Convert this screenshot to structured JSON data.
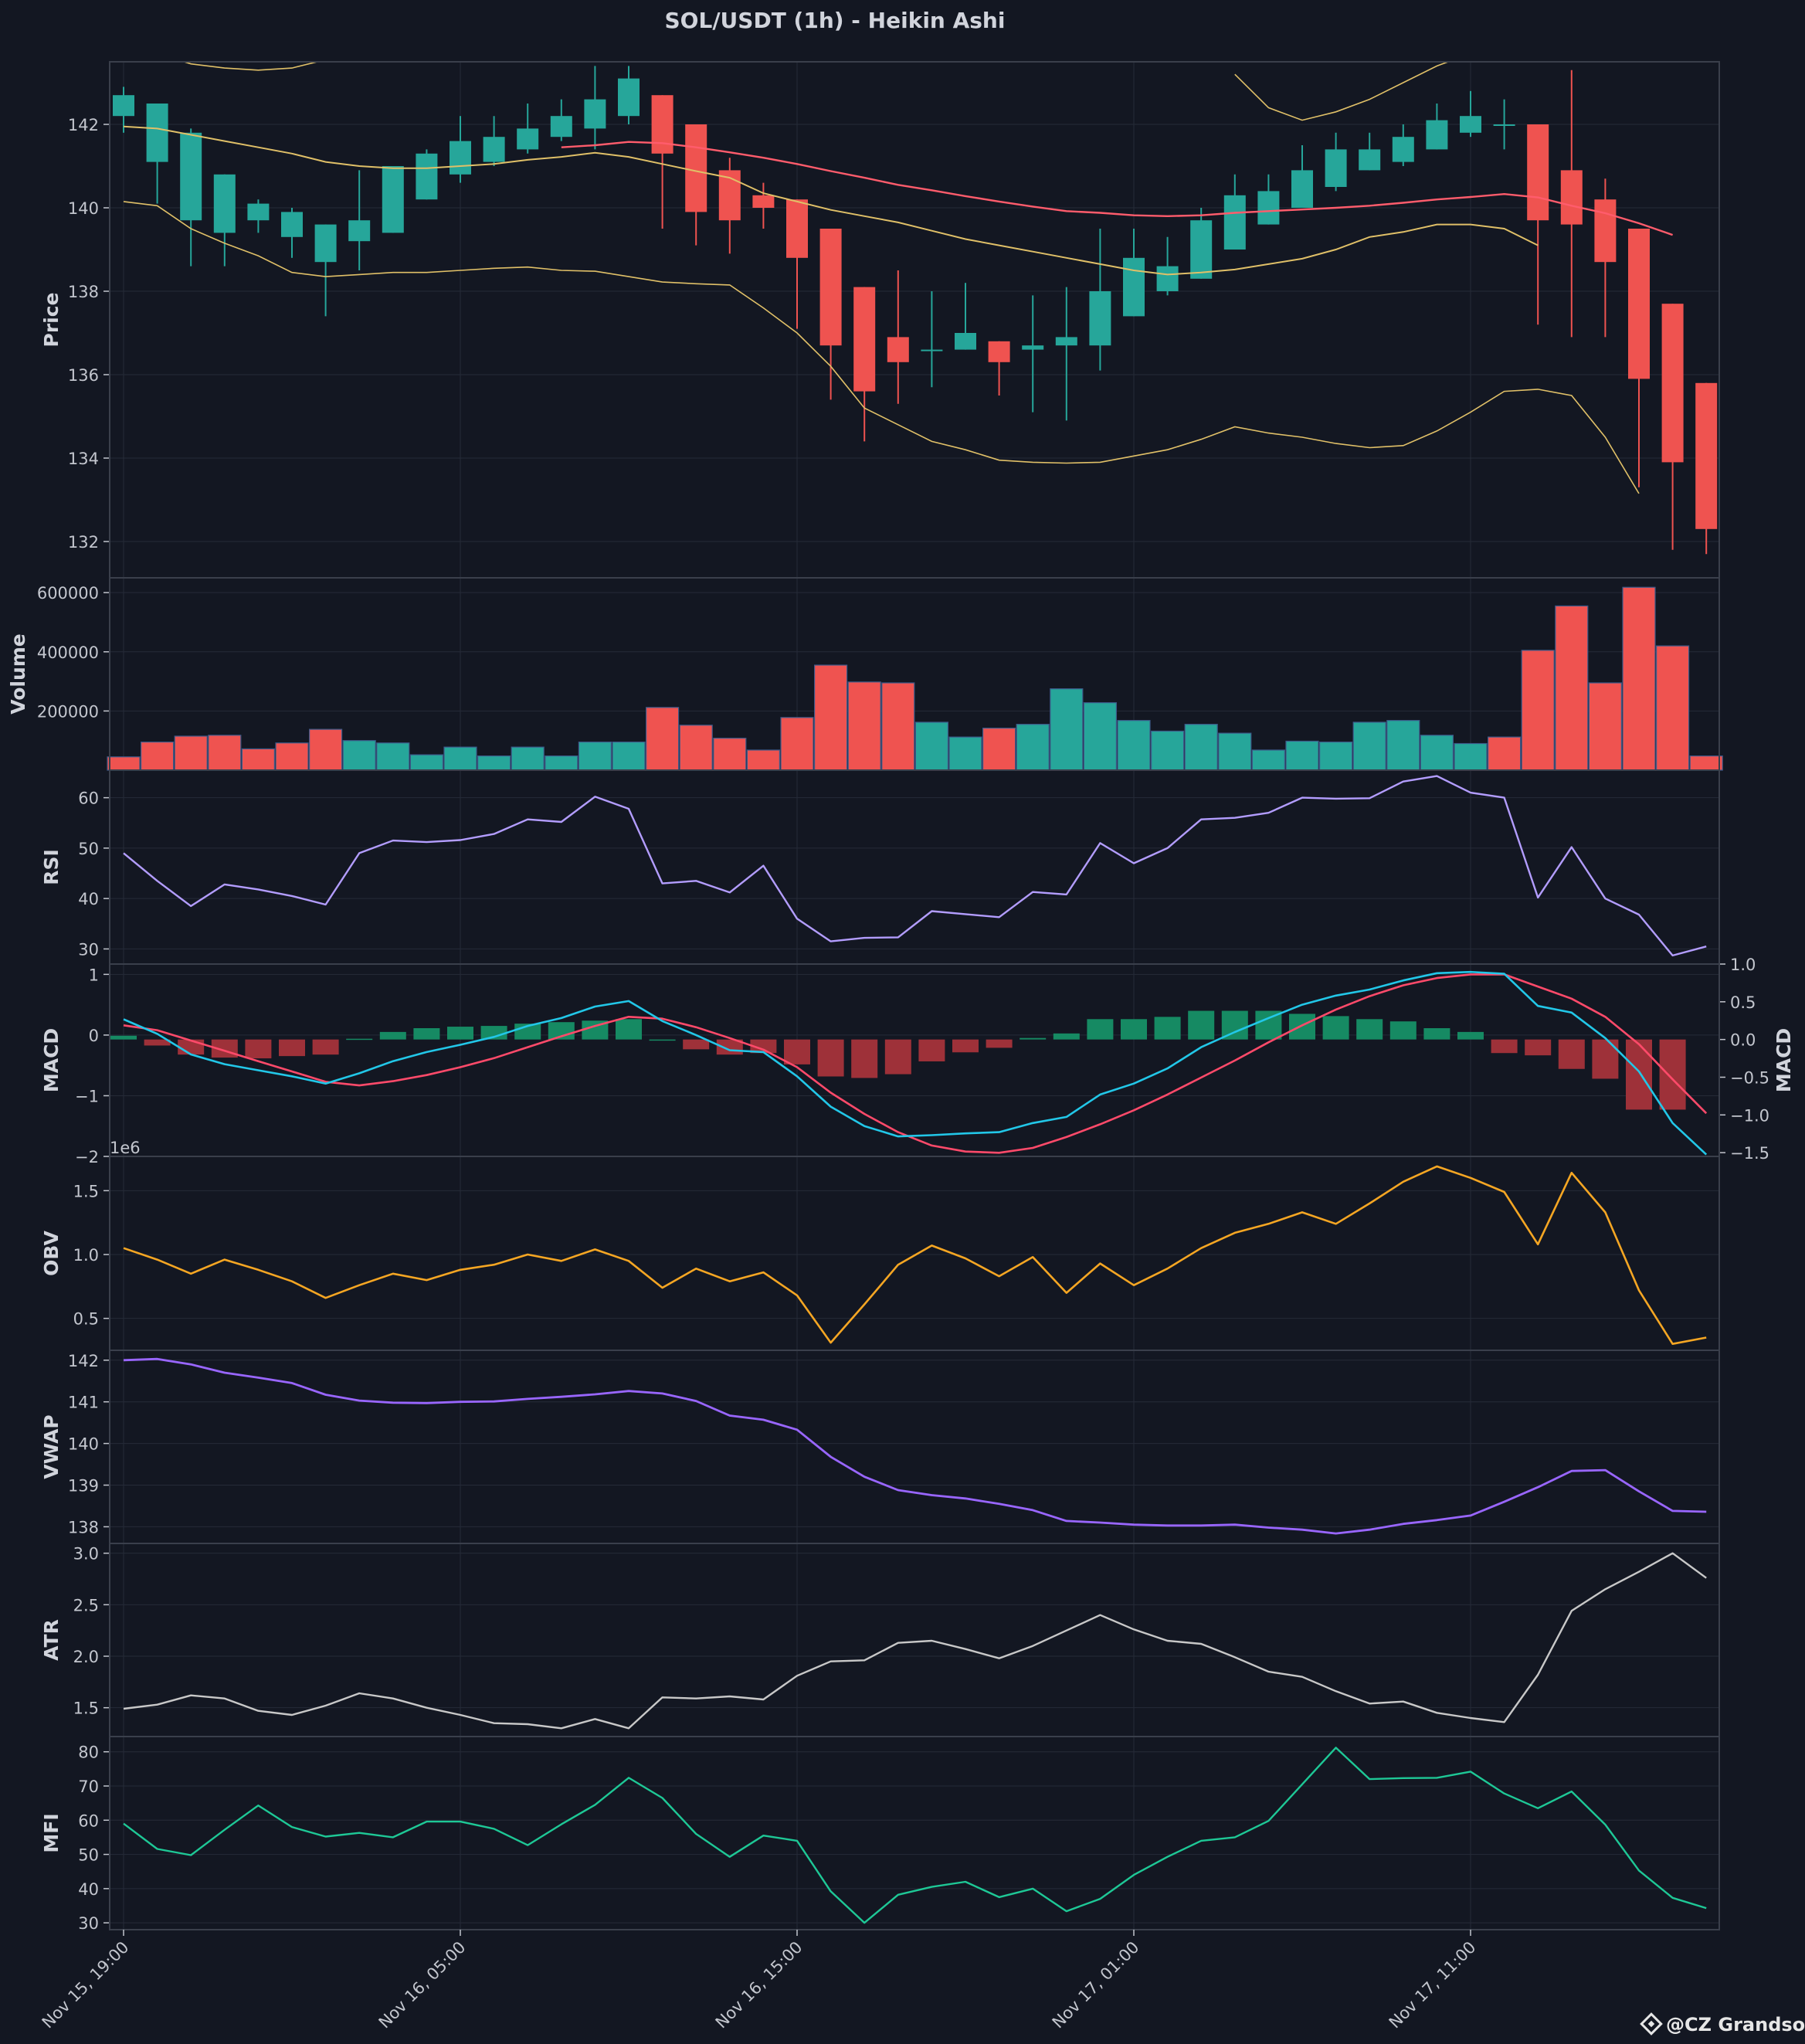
{
  "title": "SOL/USDT (1h) - Heikin Ashi",
  "watermark": "@CZ Grandson",
  "colors": {
    "background": "#131722",
    "up": "#26a69a",
    "down": "#ef5350",
    "ma": "#ff5c6c",
    "bb": "#e0c068",
    "rsi": "#b39dff",
    "macd": "#22c7e8",
    "signal": "#ff4a6a",
    "hist_up": "#168a63",
    "hist_down": "#9e3139",
    "obv": "#f5a623",
    "vwap": "#9966ff",
    "atr": "#c8c8c8",
    "mfi": "#1ec896",
    "grid": "#262b38",
    "text": "#c3c6ce"
  },
  "chart_data": {
    "type": "candlestick-multi-panel",
    "x_ticks": [
      {
        "index": 0,
        "label": "Nov 15, 19:00"
      },
      {
        "index": 10,
        "label": "Nov 16, 05:00"
      },
      {
        "index": 20,
        "label": "Nov 16, 15:00"
      },
      {
        "index": 30,
        "label": "Nov 17, 01:00"
      },
      {
        "index": 40,
        "label": "Nov 17, 11:00"
      }
    ],
    "candles": [
      {
        "o": 142.2,
        "h": 142.9,
        "l": 141.8,
        "c": 142.7
      },
      {
        "o": 141.1,
        "h": 142.4,
        "l": 140.1,
        "c": 142.5
      },
      {
        "o": 139.7,
        "h": 141.9,
        "l": 138.6,
        "c": 141.8
      },
      {
        "o": 139.4,
        "h": 140.8,
        "l": 138.6,
        "c": 140.8
      },
      {
        "o": 139.7,
        "h": 140.2,
        "l": 139.4,
        "c": 140.1
      },
      {
        "o": 139.3,
        "h": 140.0,
        "l": 138.8,
        "c": 139.9
      },
      {
        "o": 138.7,
        "h": 139.6,
        "l": 137.4,
        "c": 139.6
      },
      {
        "o": 139.2,
        "h": 140.9,
        "l": 138.5,
        "c": 139.7
      },
      {
        "o": 139.4,
        "h": 141.0,
        "l": 139.4,
        "c": 141.0
      },
      {
        "o": 140.2,
        "h": 141.4,
        "l": 140.2,
        "c": 141.3
      },
      {
        "o": 140.8,
        "h": 142.2,
        "l": 140.6,
        "c": 141.6
      },
      {
        "o": 141.1,
        "h": 142.2,
        "l": 141.0,
        "c": 141.7
      },
      {
        "o": 141.4,
        "h": 142.5,
        "l": 141.3,
        "c": 141.9
      },
      {
        "o": 141.7,
        "h": 142.6,
        "l": 141.6,
        "c": 142.2
      },
      {
        "o": 141.9,
        "h": 143.4,
        "l": 141.4,
        "c": 142.6
      },
      {
        "o": 142.2,
        "h": 143.4,
        "l": 142.0,
        "c": 143.1
      },
      {
        "o": 142.7,
        "h": 142.7,
        "l": 139.5,
        "c": 141.3
      },
      {
        "o": 142.0,
        "h": 142.0,
        "l": 139.1,
        "c": 139.9
      },
      {
        "o": 140.9,
        "h": 141.2,
        "l": 138.9,
        "c": 139.7
      },
      {
        "o": 140.3,
        "h": 140.6,
        "l": 139.5,
        "c": 140.0
      },
      {
        "o": 140.2,
        "h": 140.2,
        "l": 137.1,
        "c": 138.8
      },
      {
        "o": 139.5,
        "h": 139.5,
        "l": 135.4,
        "c": 136.7
      },
      {
        "o": 138.1,
        "h": 138.1,
        "l": 134.4,
        "c": 135.6
      },
      {
        "o": 136.9,
        "h": 138.5,
        "l": 135.3,
        "c": 136.3
      },
      {
        "o": 136.6,
        "h": 138.0,
        "l": 135.7,
        "c": 136.6
      },
      {
        "o": 136.6,
        "h": 138.2,
        "l": 136.6,
        "c": 137.0
      },
      {
        "o": 136.8,
        "h": 136.8,
        "l": 135.5,
        "c": 136.3
      },
      {
        "o": 136.6,
        "h": 137.9,
        "l": 135.1,
        "c": 136.7
      },
      {
        "o": 136.7,
        "h": 138.1,
        "l": 134.9,
        "c": 136.9
      },
      {
        "o": 136.7,
        "h": 139.5,
        "l": 136.1,
        "c": 138.0
      },
      {
        "o": 137.4,
        "h": 139.5,
        "l": 137.4,
        "c": 138.8
      },
      {
        "o": 138.0,
        "h": 139.3,
        "l": 137.9,
        "c": 138.6
      },
      {
        "o": 138.3,
        "h": 140.0,
        "l": 138.3,
        "c": 139.7
      },
      {
        "o": 139.0,
        "h": 140.8,
        "l": 139.0,
        "c": 140.3
      },
      {
        "o": 139.6,
        "h": 140.8,
        "l": 139.6,
        "c": 140.4
      },
      {
        "o": 140.0,
        "h": 141.5,
        "l": 140.0,
        "c": 140.9
      },
      {
        "o": 140.5,
        "h": 141.8,
        "l": 140.4,
        "c": 141.4
      },
      {
        "o": 140.9,
        "h": 141.8,
        "l": 140.9,
        "c": 141.4
      },
      {
        "o": 141.1,
        "h": 142.0,
        "l": 141.0,
        "c": 141.7
      },
      {
        "o": 141.4,
        "h": 142.5,
        "l": 141.4,
        "c": 142.1
      },
      {
        "o": 141.8,
        "h": 142.8,
        "l": 141.7,
        "c": 142.2
      },
      {
        "o": 142.0,
        "h": 142.6,
        "l": 141.4,
        "c": 142.0
      },
      {
        "o": 142.0,
        "h": 142.0,
        "l": 137.2,
        "c": 139.7
      },
      {
        "o": 140.9,
        "h": 143.3,
        "l": 136.9,
        "c": 139.6
      },
      {
        "o": 140.2,
        "h": 140.7,
        "l": 136.9,
        "c": 138.7
      },
      {
        "o": 139.5,
        "h": 139.5,
        "l": 133.3,
        "c": 135.9
      },
      {
        "o": 137.7,
        "h": 137.7,
        "l": 131.8,
        "c": 133.9
      },
      {
        "o": 135.8,
        "h": 135.8,
        "l": 131.7,
        "c": 132.3
      }
    ],
    "ma": [
      null,
      null,
      null,
      null,
      null,
      null,
      null,
      null,
      null,
      null,
      null,
      null,
      null,
      141.45,
      141.5,
      141.58,
      141.55,
      141.45,
      141.33,
      141.2,
      141.05,
      140.88,
      140.72,
      140.55,
      140.42,
      140.28,
      140.15,
      140.03,
      139.92,
      139.88,
      139.82,
      139.8,
      139.82,
      139.88,
      139.92,
      139.96,
      140.0,
      140.05,
      140.12,
      140.2,
      140.26,
      140.33,
      140.25,
      140.05,
      139.87,
      139.63,
      139.35
    ],
    "bb_mid": [
      141.95,
      141.9,
      141.75,
      141.6,
      141.45,
      141.3,
      141.1,
      141.0,
      140.95,
      140.95,
      141.0,
      141.05,
      141.15,
      141.22,
      141.32,
      141.22,
      141.05,
      140.88,
      140.72,
      140.35,
      140.15,
      139.95,
      139.8,
      139.65,
      139.45,
      139.25,
      139.1,
      138.95,
      138.8,
      138.65,
      138.5,
      138.4,
      138.45,
      138.52,
      138.65,
      138.78,
      139.0,
      139.3,
      139.42,
      139.6,
      139.6,
      139.5,
      139.1
    ],
    "bb_lower": [
      140.15,
      140.05,
      139.5,
      139.15,
      138.85,
      138.45,
      138.35,
      138.4,
      138.45,
      138.45,
      138.5,
      138.55,
      138.58,
      138.5,
      138.48,
      138.35,
      138.22,
      138.18,
      138.15,
      137.6,
      137.0,
      136.2,
      135.2,
      134.8,
      134.4,
      134.2,
      133.95,
      133.9,
      133.88,
      133.9,
      134.05,
      134.2,
      134.45,
      134.75,
      134.6,
      134.5,
      134.35,
      134.25,
      134.3,
      134.65,
      135.1,
      135.6,
      135.65,
      135.5,
      134.5,
      133.15
    ],
    "bb_upper": [
      143.75,
      143.7,
      143.45,
      143.35,
      143.3,
      143.35,
      143.55,
      143.6,
      143.65,
      143.65,
      143.7,
      143.55
    ],
    "bb_upper_late": [
      {
        "i": 33,
        "v": 143.2
      },
      {
        "i": 34,
        "v": 142.4
      },
      {
        "i": 35,
        "v": 142.1
      },
      {
        "i": 36,
        "v": 142.3
      },
      {
        "i": 37,
        "v": 142.6
      },
      {
        "i": 38,
        "v": 143.0
      },
      {
        "i": 39,
        "v": 143.4
      },
      {
        "i": 40,
        "v": 143.7
      }
    ],
    "volume": [
      45000,
      95000,
      115000,
      118000,
      72000,
      92000,
      138000,
      100000,
      92000,
      52000,
      78000,
      48000,
      78000,
      48000,
      95000,
      95000,
      212000,
      152000,
      108000,
      68000,
      178000,
      355000,
      298000,
      295000,
      162000,
      112000,
      142000,
      155000,
      275000,
      228000,
      168000,
      132000,
      155000,
      125000,
      68000,
      98000,
      95000,
      162000,
      168000,
      118000,
      90000,
      112000,
      405000,
      555000,
      295000,
      618000,
      420000,
      48000
    ],
    "volume_up": [
      false,
      false,
      false,
      false,
      false,
      false,
      false,
      true,
      true,
      true,
      true,
      true,
      true,
      true,
      true,
      true,
      false,
      false,
      false,
      false,
      false,
      false,
      false,
      false,
      true,
      true,
      false,
      true,
      true,
      true,
      true,
      true,
      true,
      true,
      true,
      true,
      true,
      true,
      true,
      true,
      true,
      false,
      false,
      false,
      false,
      false,
      false,
      false
    ],
    "rsi": [
      49,
      43.5,
      38.5,
      42.8,
      41.8,
      40.5,
      38.8,
      49,
      51.5,
      51.2,
      51.6,
      52.8,
      55.7,
      55.2,
      60.2,
      57.8,
      43,
      43.5,
      41.2,
      46.5,
      36,
      31.5,
      32.2,
      32.3,
      37.5,
      36.9,
      36.3,
      41.3,
      40.8,
      51,
      47,
      50,
      55.7,
      56,
      57,
      60,
      59.8,
      59.9,
      63.2,
      64.3,
      61,
      60,
      40.2,
      50.2,
      40,
      36.8,
      28.7,
      30.5
    ],
    "macd": [
      0.26,
      0.02,
      -0.32,
      -0.48,
      -0.58,
      -0.68,
      -0.8,
      -0.63,
      -0.43,
      -0.28,
      -0.16,
      -0.03,
      0.15,
      0.28,
      0.47,
      0.56,
      0.23,
      0.0,
      -0.25,
      -0.28,
      -0.68,
      -1.18,
      -1.5,
      -1.67,
      -1.65,
      -1.62,
      -1.6,
      -1.45,
      -1.35,
      -0.98,
      -0.8,
      -0.55,
      -0.2,
      0.05,
      0.28,
      0.5,
      0.65,
      0.75,
      0.9,
      1.02,
      1.04,
      1.01,
      0.48,
      0.37,
      -0.05,
      -0.6,
      -1.45,
      -1.97
    ],
    "signal": [
      0.16,
      0.08,
      -0.09,
      -0.26,
      -0.43,
      -0.6,
      -0.77,
      -0.83,
      -0.76,
      -0.66,
      -0.53,
      -0.38,
      -0.2,
      -0.02,
      0.15,
      0.3,
      0.27,
      0.13,
      -0.05,
      -0.24,
      -0.53,
      -0.95,
      -1.3,
      -1.6,
      -1.82,
      -1.92,
      -1.94,
      -1.86,
      -1.68,
      -1.47,
      -1.24,
      -0.98,
      -0.7,
      -0.42,
      -0.12,
      0.16,
      0.42,
      0.64,
      0.82,
      0.94,
      1.0,
      1.0,
      0.8,
      0.6,
      0.3,
      -0.15,
      -0.73,
      -1.29
    ],
    "hist": [
      0.05,
      -0.08,
      -0.2,
      -0.24,
      -0.25,
      -0.22,
      -0.2,
      0.01,
      0.1,
      0.15,
      0.17,
      0.18,
      0.21,
      0.23,
      0.25,
      0.27,
      0.0,
      -0.13,
      -0.2,
      -0.18,
      -0.33,
      -0.49,
      -0.51,
      -0.46,
      -0.29,
      -0.17,
      -0.11,
      0.02,
      0.08,
      0.27,
      0.27,
      0.3,
      0.38,
      0.38,
      0.38,
      0.34,
      0.31,
      0.27,
      0.24,
      0.15,
      0.1,
      -0.18,
      -0.21,
      -0.39,
      -0.52,
      -0.93,
      -0.93
    ],
    "obv": [
      1.05,
      0.96,
      0.85,
      0.96,
      0.88,
      0.79,
      0.66,
      0.76,
      0.85,
      0.8,
      0.88,
      0.92,
      1.0,
      0.95,
      1.04,
      0.95,
      0.74,
      0.89,
      0.79,
      0.86,
      0.68,
      0.31,
      0.61,
      0.92,
      1.07,
      0.97,
      0.83,
      0.98,
      0.7,
      0.93,
      0.76,
      0.89,
      1.05,
      1.17,
      1.24,
      1.33,
      1.24,
      1.4,
      1.57,
      1.69,
      1.6,
      1.49,
      1.08,
      1.64,
      1.33,
      0.72,
      0.3,
      0.35
    ],
    "vwap": [
      142.0,
      142.03,
      141.9,
      141.7,
      141.58,
      141.45,
      141.17,
      141.03,
      140.98,
      140.97,
      141.0,
      141.01,
      141.07,
      141.12,
      141.18,
      141.26,
      141.2,
      141.02,
      140.67,
      140.57,
      140.33,
      139.68,
      139.2,
      138.88,
      138.76,
      138.68,
      138.55,
      138.4,
      138.14,
      138.1,
      138.05,
      138.03,
      138.03,
      138.05,
      137.98,
      137.93,
      137.84,
      137.93,
      138.07,
      138.16,
      138.27,
      138.6,
      138.95,
      139.34,
      139.36,
      138.85,
      138.38,
      138.36
    ],
    "atr": [
      1.49,
      1.53,
      1.62,
      1.59,
      1.47,
      1.43,
      1.52,
      1.64,
      1.59,
      1.5,
      1.43,
      1.35,
      1.34,
      1.3,
      1.39,
      1.3,
      1.6,
      1.59,
      1.61,
      1.58,
      1.81,
      1.95,
      1.96,
      2.13,
      2.15,
      2.07,
      1.98,
      2.1,
      2.25,
      2.4,
      2.26,
      2.15,
      2.12,
      1.99,
      1.85,
      1.8,
      1.66,
      1.54,
      1.56,
      1.45,
      1.4,
      1.36,
      1.82,
      2.44,
      2.65,
      2.82,
      3.0,
      2.76
    ],
    "mfi": [
      59,
      51.6,
      49.8,
      57.2,
      64.3,
      58,
      55.2,
      56.3,
      55,
      59.6,
      59.6,
      57.5,
      52.7,
      58.8,
      64.5,
      72.4,
      66.5,
      56,
      49.3,
      55.5,
      54,
      39.2,
      30,
      38.2,
      40.5,
      42,
      37.5,
      40,
      33.4,
      37,
      44,
      49.3,
      54,
      55,
      59.8,
      70.5,
      81.2,
      72,
      72.3,
      72.4,
      74.2,
      67.8,
      63.5,
      68.4,
      58.7,
      45.3,
      37.3,
      34.3
    ],
    "panels": [
      {
        "key": "price",
        "ylabel": "Price",
        "ymin": 131.5,
        "ymax": 143.5,
        "ticks": [
          "132",
          "134",
          "136",
          "138",
          "140",
          "142"
        ],
        "tick_values": [
          132,
          134,
          136,
          138,
          140,
          142
        ]
      },
      {
        "key": "volume",
        "ylabel": "Volume",
        "ymin": 0,
        "ymax": 650000,
        "ticks": [
          "200000",
          "400000",
          "600000"
        ],
        "tick_values": [
          200000,
          400000,
          600000
        ]
      },
      {
        "key": "rsi",
        "ylabel": "RSI",
        "ymin": 27,
        "ymax": 65,
        "ticks": [
          "30",
          "40",
          "50",
          "60"
        ],
        "tick_values": [
          30,
          40,
          50,
          60
        ]
      },
      {
        "key": "macd",
        "ylabel": "MACD",
        "ymin": -2.0,
        "ymax": 1.17,
        "ticks": [
          "−2",
          "−1",
          "0",
          "1"
        ],
        "tick_values": [
          -2,
          -1,
          0,
          1
        ],
        "right_ylabel": "MACD",
        "right_ticks": [
          "−1.5",
          "−1.0",
          "−0.5",
          "0.0",
          "0.5",
          "1.0"
        ],
        "right_tick_values": [
          -1.5,
          -1.0,
          -0.5,
          0.0,
          0.5,
          1.0
        ],
        "right_ymin": -1.55,
        "right_ymax": 1.0
      },
      {
        "key": "obv",
        "ylabel": "OBV",
        "ymin": 0.25,
        "ymax": 1.75,
        "ticks": [
          "0.5",
          "1.0",
          "1.5"
        ],
        "tick_values": [
          0.5,
          1.0,
          1.5
        ],
        "offset_label": "1e6"
      },
      {
        "key": "vwap",
        "ylabel": "VWAP",
        "ymin": 137.6,
        "ymax": 142.2,
        "ticks": [
          "138",
          "139",
          "140",
          "141",
          "142"
        ],
        "tick_values": [
          138,
          139,
          140,
          141,
          142
        ]
      },
      {
        "key": "atr",
        "ylabel": "ATR",
        "ymin": 1.22,
        "ymax": 3.08,
        "ticks": [
          "1.5",
          "2.0",
          "2.5",
          "3.0"
        ],
        "tick_values": [
          1.5,
          2.0,
          2.5,
          3.0
        ]
      },
      {
        "key": "mfi",
        "ylabel": "MFI",
        "ymin": 28,
        "ymax": 84,
        "ticks": [
          "30",
          "40",
          "50",
          "60",
          "70",
          "80"
        ],
        "tick_values": [
          30,
          40,
          50,
          60,
          70,
          80
        ]
      }
    ]
  }
}
